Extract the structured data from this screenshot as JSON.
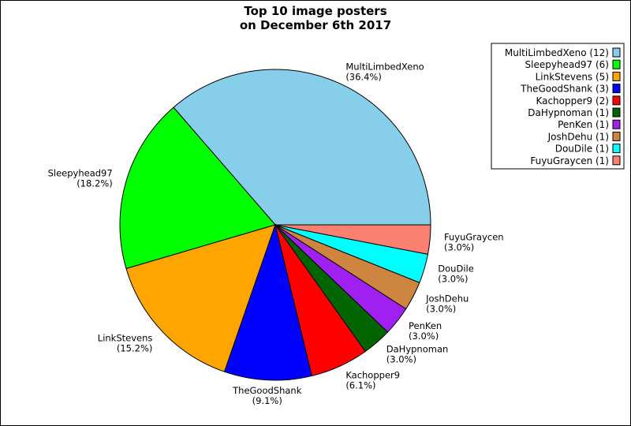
{
  "chart_data": {
    "type": "pie",
    "title_line1": "Top 10 image posters",
    "title_line2": "on December 6th 2017",
    "slices": [
      {
        "name": "MultiLimbedXeno",
        "value": 12,
        "percent": "(36.4%)",
        "legend": "MultiLimbedXeno (12)",
        "color": "#87ceeb"
      },
      {
        "name": "Sleepyhead97",
        "value": 6,
        "percent": "(18.2%)",
        "legend": "Sleepyhead97 (6)",
        "color": "#00ff00"
      },
      {
        "name": "LinkStevens",
        "value": 5,
        "percent": "(15.2%)",
        "legend": "LinkStevens (5)",
        "color": "#ffa500"
      },
      {
        "name": "TheGoodShank",
        "value": 3,
        "percent": "(9.1%)",
        "legend": "TheGoodShank (3)",
        "color": "#0000ff"
      },
      {
        "name": "Kachopper9",
        "value": 2,
        "percent": "(6.1%)",
        "legend": "Kachopper9 (2)",
        "color": "#ff0000"
      },
      {
        "name": "DaHypnoman",
        "value": 1,
        "percent": "(3.0%)",
        "legend": "DaHypnoman (1)",
        "color": "#006400"
      },
      {
        "name": "PenKen",
        "value": 1,
        "percent": "(3.0%)",
        "legend": "PenKen (1)",
        "color": "#a020f0"
      },
      {
        "name": "JoshDehu",
        "value": 1,
        "percent": "(3.0%)",
        "legend": "JoshDehu (1)",
        "color": "#cd853f"
      },
      {
        "name": "DouDile",
        "value": 1,
        "percent": "(3.0%)",
        "legend": "DouDile (1)",
        "color": "#00ffff"
      },
      {
        "name": "FuyuGraycen",
        "value": 1,
        "percent": "(3.0%)",
        "legend": "FuyuGraycen (1)",
        "color": "#fa8072"
      }
    ],
    "legend_position": "top-right",
    "start_angle_deg": 0,
    "direction": "counterclockwise"
  }
}
